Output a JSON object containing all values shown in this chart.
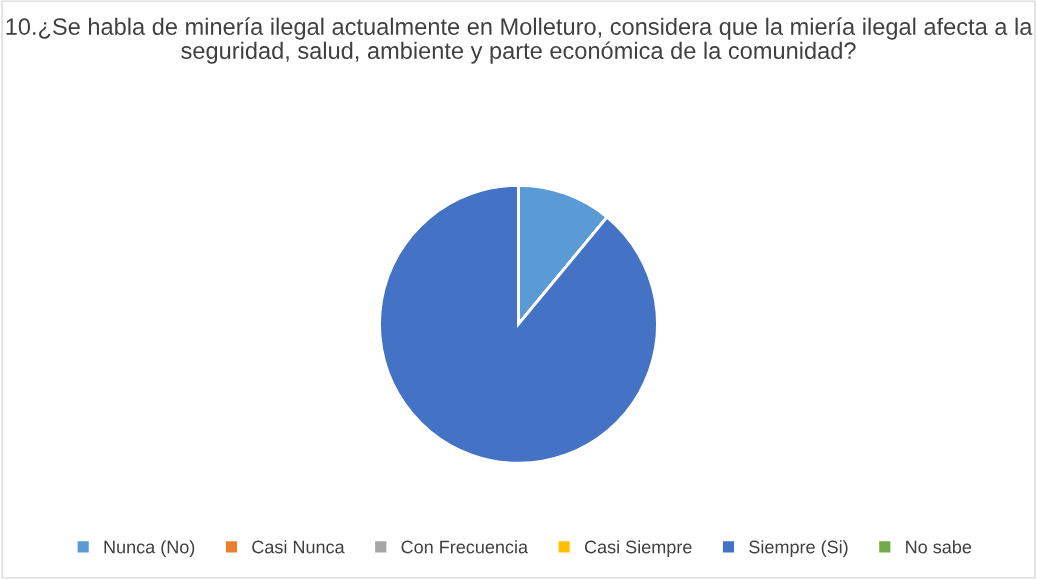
{
  "chart_data": {
    "type": "pie",
    "title": "10.¿Se habla de minería ilegal actualmente en Molleturo, considera que la miería ilegal afecta a la seguridad, salud, ambiente y parte económica de la comunidad?",
    "categories": [
      "Nunca (No)",
      "Casi Nunca",
      "Con Frecuencia",
      "Casi Siempre",
      "Siempre (Si)",
      "No sabe"
    ],
    "values": [
      11,
      0,
      0,
      0,
      89,
      0
    ],
    "colors": [
      "#5b9bd5",
      "#ed7d31",
      "#a5a5a5",
      "#ffc000",
      "#4472c4",
      "#70ad47"
    ],
    "legend": "bottom"
  }
}
